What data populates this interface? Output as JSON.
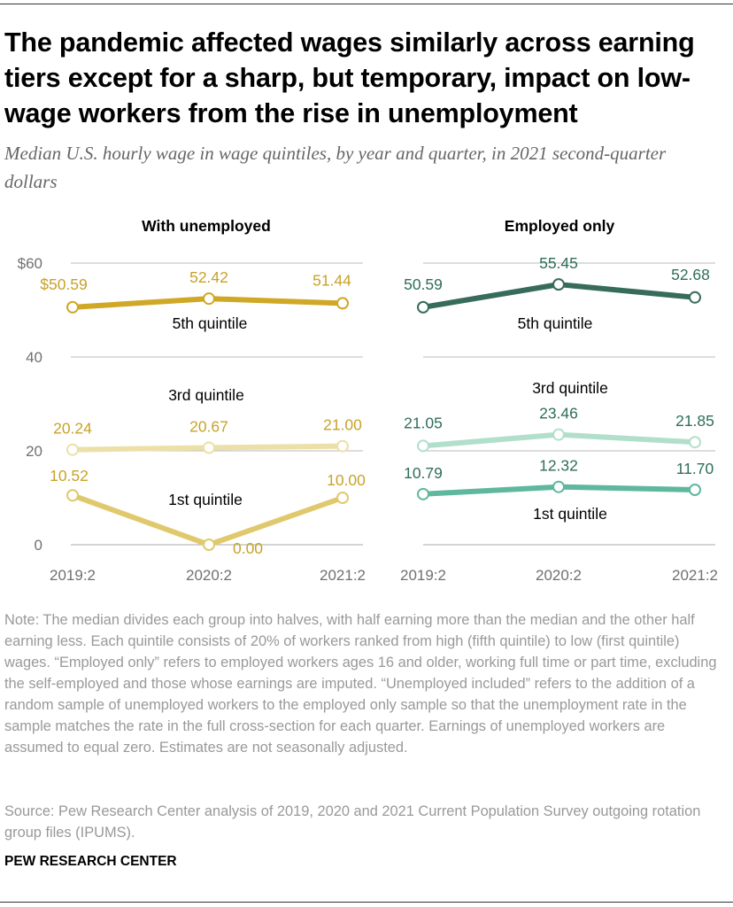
{
  "title": "The pandemic affected wages similarly across earning tiers except for a sharp, but temporary, impact on low-wage workers from the rise in unemployment",
  "subtitle": "Median U.S. hourly wage in wage quintiles, by year and quarter, in 2021 second-quarter dollars",
  "note": "Note: The median divides each group into halves, with half earning more than the median and the other half earning less. Each quintile consists of 20% of workers ranked from high (fifth quintile) to low (first quintile) wages. “Employed only” refers to employed workers ages 16 and older, working full time or part time, excluding the self-employed and those whose earnings are imputed. “Unemployed included” refers to the addition of a random sample of unemployed workers to the employed only sample so that the unemployment rate in the sample matches the rate in the full cross-section for each quarter. Earnings of unemployed workers are assumed to equal zero. Estimates are not seasonally adjusted.",
  "source": "Source: Pew Research Center analysis of 2019, 2020 and 2021 Current Population Survey outgoing rotation group files (IPUMS).",
  "org": "PEW RESEARCH CENTER",
  "colors": {
    "gold": {
      "q5": "#cfa826",
      "q3": "#ece0a9",
      "q1": "#e0c96d",
      "label": "#c8a22a"
    },
    "green": {
      "q5": "#376b5c",
      "q3": "#b2dfcc",
      "q1": "#5fb79d",
      "label": "#2e6e5c"
    },
    "grid": "#bbbbbb",
    "tick": "#707070"
  },
  "chart_data": [
    {
      "type": "line",
      "title": "With unemployed",
      "x": [
        "2019:2",
        "2020:2",
        "2021:2"
      ],
      "ylim": [
        0,
        60
      ],
      "yticks": [
        "$60",
        "40",
        "20",
        "0"
      ],
      "series": [
        {
          "name": "5th quintile",
          "values": [
            50.59,
            52.42,
            51.44
          ],
          "labels": [
            "$50.59",
            "52.42",
            "51.44"
          ]
        },
        {
          "name": "3rd quintile",
          "values": [
            20.24,
            20.67,
            21.0
          ],
          "labels": [
            "20.24",
            "20.67",
            "21.00"
          ]
        },
        {
          "name": "1st quintile",
          "values": [
            10.52,
            0.0,
            10.0
          ],
          "labels": [
            "10.52",
            "0.00",
            "10.00"
          ]
        }
      ]
    },
    {
      "type": "line",
      "title": "Employed only",
      "x": [
        "2019:2",
        "2020:2",
        "2021:2"
      ],
      "ylim": [
        0,
        60
      ],
      "series": [
        {
          "name": "5th quintile",
          "values": [
            50.59,
            55.45,
            52.68
          ],
          "labels": [
            "50.59",
            "55.45",
            "52.68"
          ]
        },
        {
          "name": "3rd quintile",
          "values": [
            21.05,
            23.46,
            21.85
          ],
          "labels": [
            "21.05",
            "23.46",
            "21.85"
          ]
        },
        {
          "name": "1st quintile",
          "values": [
            10.79,
            12.32,
            11.7
          ],
          "labels": [
            "10.79",
            "12.32",
            "11.70"
          ]
        }
      ]
    }
  ]
}
